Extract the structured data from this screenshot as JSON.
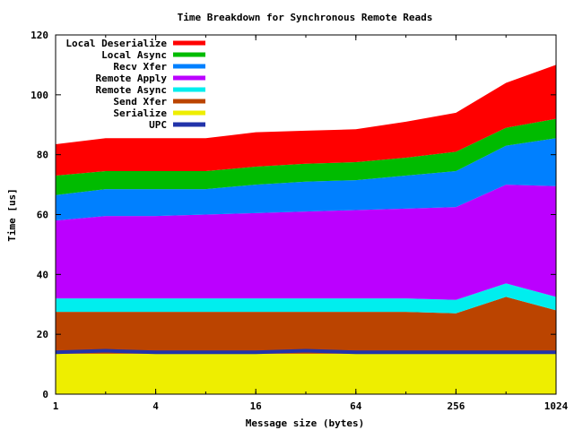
{
  "chart_data": {
    "type": "area",
    "title": "Time Breakdown for Synchronous Remote Reads",
    "xlabel": "Message size (bytes)",
    "ylabel": "Time [us]",
    "x_scale": "log2",
    "x": [
      1,
      2,
      4,
      8,
      16,
      32,
      64,
      128,
      256,
      512,
      1024
    ],
    "x_ticks": [
      "1",
      "4",
      "16",
      "64",
      "256",
      "1024"
    ],
    "x_tick_values": [
      1,
      4,
      16,
      64,
      256,
      1024
    ],
    "ylim": [
      0,
      120
    ],
    "y_ticks": [
      "0",
      "20",
      "40",
      "60",
      "80",
      "100",
      "120"
    ],
    "grid": false,
    "legend_position": "top-left",
    "stacked": true,
    "series": [
      {
        "name": "Serialize",
        "color": "#eeee00",
        "values": [
          13.5,
          13.5,
          13.5,
          13.5,
          13.5,
          13.5,
          13.5,
          13.5,
          13.5,
          13.5,
          13.5
        ]
      },
      {
        "name": "Send Xfer",
        "color": "#bb4400",
        "values": [
          14.0,
          14.0,
          14.0,
          14.0,
          14.0,
          14.0,
          14.0,
          14.0,
          13.5,
          19.0,
          14.5
        ]
      },
      {
        "name": "Remote Async",
        "color": "#00eeee",
        "values": [
          4.5,
          4.5,
          4.5,
          4.5,
          4.5,
          4.5,
          4.5,
          4.5,
          4.5,
          4.5,
          4.5
        ]
      },
      {
        "name": "Remote Apply",
        "color": "#bb00ff",
        "values": [
          26.0,
          27.5,
          27.5,
          28.0,
          28.5,
          29.0,
          29.5,
          30.0,
          31.0,
          33.0,
          37.0
        ]
      },
      {
        "name": "Recv Xfer",
        "color": "#0080ff",
        "values": [
          8.5,
          9.0,
          9.0,
          8.5,
          9.5,
          10.0,
          10.0,
          11.0,
          12.0,
          13.0,
          16.0
        ]
      },
      {
        "name": "Local Async",
        "color": "#00bb00",
        "values": [
          6.5,
          6.0,
          6.0,
          6.0,
          6.0,
          6.0,
          6.0,
          6.0,
          6.5,
          6.0,
          6.5
        ]
      },
      {
        "name": "Local Deserialize",
        "color": "#ff0000",
        "values": [
          10.5,
          11.0,
          11.0,
          11.0,
          11.5,
          11.0,
          11.0,
          12.0,
          13.0,
          15.0,
          18.0
        ]
      }
    ],
    "overlay_line": {
      "name": "UPC",
      "color": "#2233aa",
      "values": [
        14.0,
        14.5,
        14.0,
        14.0,
        14.0,
        14.5,
        14.0,
        14.0,
        14.0,
        14.0,
        14.0
      ]
    },
    "legend_order": [
      "Local Deserialize",
      "Local Async",
      "Recv Xfer",
      "Remote Apply",
      "Remote Async",
      "Send Xfer",
      "Serialize",
      "UPC"
    ]
  }
}
